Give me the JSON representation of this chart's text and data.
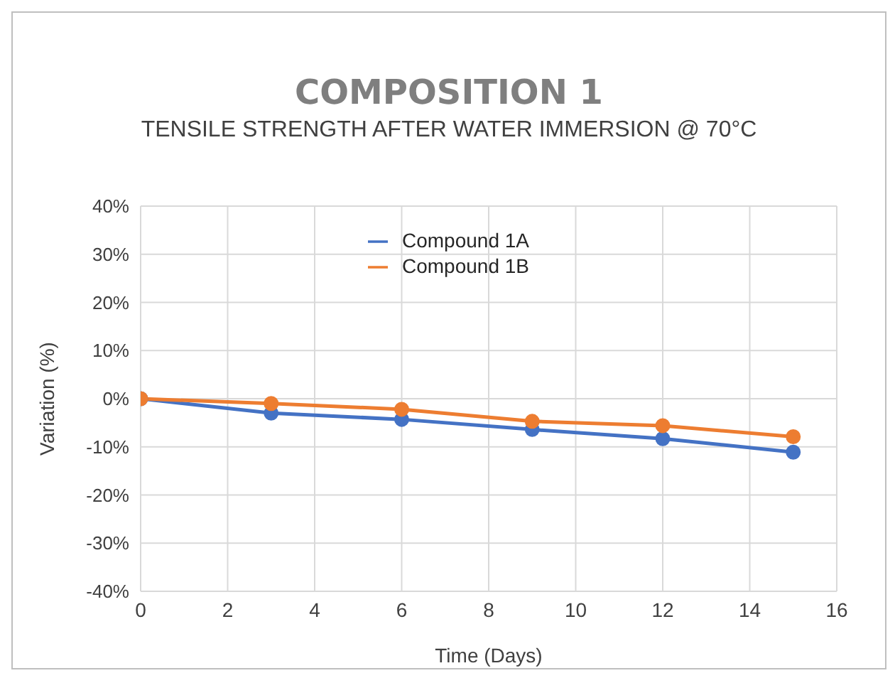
{
  "chart_data": {
    "type": "line",
    "title": "COMPOSITION 1",
    "subtitle": "TENSILE STRENGTH AFTER WATER IMMERSION @ 70°C",
    "xlabel": "Time (Days)",
    "ylabel": "Variation (%)",
    "x": [
      0,
      3,
      6,
      9,
      12,
      15
    ],
    "series": [
      {
        "name": "Compound 1A",
        "color": "#4472c4",
        "values": [
          0,
          -3.0,
          -4.3,
          -6.4,
          -8.3,
          -11.1
        ]
      },
      {
        "name": "Compound 1B",
        "color": "#ed7d31",
        "values": [
          0,
          -1.0,
          -2.2,
          -4.7,
          -5.6,
          -7.9
        ]
      }
    ],
    "xlim": [
      0,
      16
    ],
    "xticks": [
      0,
      2,
      4,
      6,
      8,
      10,
      12,
      14,
      16
    ],
    "ylim": [
      -40,
      40
    ],
    "yticks": [
      {
        "value": -40,
        "label": "-40%"
      },
      {
        "value": -30,
        "label": "-30%"
      },
      {
        "value": -20,
        "label": "-20%"
      },
      {
        "value": -10,
        "label": "-10%"
      },
      {
        "value": 0,
        "label": "0%"
      },
      {
        "value": 10,
        "label": "10%"
      },
      {
        "value": 20,
        "label": "20%"
      },
      {
        "value": 30,
        "label": "30%"
      },
      {
        "value": 40,
        "label": "40%"
      }
    ],
    "grid": true,
    "legend": "top",
    "marker": "circle",
    "line_style": "solid"
  }
}
